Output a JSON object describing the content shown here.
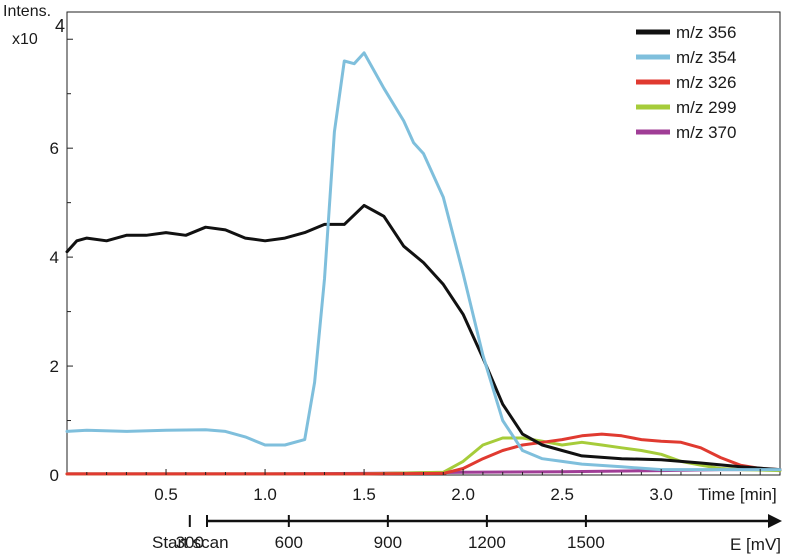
{
  "chart_data": {
    "type": "line",
    "ylabel": "Intens.",
    "yscale": "x10",
    "yscale_exp": "4",
    "xlabel": "Time [min]",
    "xlim": [
      0,
      3.6
    ],
    "ylim": [
      0,
      8.5
    ],
    "x_ticks": [
      {
        "value": 0.5,
        "label": "0.5"
      },
      {
        "value": 1.0,
        "label": "1.0"
      },
      {
        "value": 1.5,
        "label": "1.5"
      },
      {
        "value": 2.0,
        "label": "2.0"
      },
      {
        "value": 2.5,
        "label": "2.5"
      },
      {
        "value": 3.0,
        "label": "3.0"
      }
    ],
    "y_ticks": [
      {
        "value": 0,
        "label": "0"
      },
      {
        "value": 2,
        "label": "2"
      },
      {
        "value": 4,
        "label": "4"
      },
      {
        "value": 6,
        "label": "6"
      }
    ],
    "legend_position": "top-right",
    "grid": false,
    "series": [
      {
        "name": "m/z 356",
        "color": "#111111",
        "x": [
          0.0,
          0.05,
          0.1,
          0.2,
          0.3,
          0.4,
          0.5,
          0.6,
          0.7,
          0.8,
          0.9,
          1.0,
          1.1,
          1.2,
          1.3,
          1.4,
          1.5,
          1.6,
          1.7,
          1.8,
          1.9,
          2.0,
          2.1,
          2.2,
          2.3,
          2.4,
          2.5,
          2.6,
          2.8,
          3.0,
          3.2,
          3.4,
          3.6
        ],
        "values": [
          4.1,
          4.3,
          4.35,
          4.3,
          4.4,
          4.4,
          4.45,
          4.4,
          4.55,
          4.5,
          4.35,
          4.3,
          4.35,
          4.45,
          4.6,
          4.6,
          4.95,
          4.75,
          4.2,
          3.9,
          3.5,
          2.95,
          2.15,
          1.3,
          0.75,
          0.55,
          0.45,
          0.35,
          0.3,
          0.28,
          0.22,
          0.15,
          0.1
        ]
      },
      {
        "name": "m/z 354",
        "color": "#7fbfdc",
        "x": [
          0.0,
          0.1,
          0.3,
          0.5,
          0.7,
          0.8,
          0.9,
          1.0,
          1.1,
          1.2,
          1.25,
          1.3,
          1.35,
          1.4,
          1.45,
          1.5,
          1.6,
          1.7,
          1.75,
          1.8,
          1.9,
          2.0,
          2.1,
          2.2,
          2.3,
          2.4,
          2.5,
          2.6,
          2.8,
          3.0,
          3.2,
          3.4,
          3.6
        ],
        "values": [
          0.8,
          0.82,
          0.8,
          0.82,
          0.83,
          0.8,
          0.7,
          0.55,
          0.55,
          0.65,
          1.7,
          3.6,
          6.3,
          7.6,
          7.55,
          7.75,
          7.1,
          6.5,
          6.1,
          5.9,
          5.1,
          3.7,
          2.2,
          1.0,
          0.45,
          0.3,
          0.25,
          0.2,
          0.15,
          0.1,
          0.1,
          0.1,
          0.1
        ]
      },
      {
        "name": "m/z 326",
        "color": "#e03a30",
        "x": [
          0.0,
          0.5,
          1.0,
          1.5,
          1.9,
          2.0,
          2.1,
          2.2,
          2.3,
          2.4,
          2.5,
          2.6,
          2.7,
          2.8,
          2.9,
          3.0,
          3.1,
          3.2,
          3.3,
          3.4,
          3.5,
          3.6
        ],
        "values": [
          0.02,
          0.02,
          0.02,
          0.02,
          0.03,
          0.12,
          0.3,
          0.45,
          0.55,
          0.6,
          0.65,
          0.72,
          0.75,
          0.72,
          0.65,
          0.62,
          0.6,
          0.5,
          0.32,
          0.18,
          0.12,
          0.1
        ]
      },
      {
        "name": "m/z 299",
        "color": "#a6cc3a",
        "x": [
          0.0,
          0.5,
          1.0,
          1.5,
          1.9,
          2.0,
          2.1,
          2.2,
          2.3,
          2.4,
          2.5,
          2.6,
          2.7,
          2.8,
          2.9,
          3.0,
          3.1,
          3.2,
          3.3,
          3.4,
          3.6
        ],
        "values": [
          0.02,
          0.02,
          0.02,
          0.02,
          0.05,
          0.25,
          0.55,
          0.68,
          0.68,
          0.62,
          0.55,
          0.6,
          0.55,
          0.5,
          0.45,
          0.38,
          0.25,
          0.18,
          0.12,
          0.1,
          0.08
        ]
      },
      {
        "name": "m/z 370",
        "color": "#a03d96",
        "x": [
          0.0,
          0.5,
          1.0,
          1.5,
          2.0,
          2.5,
          3.0,
          3.3,
          3.6
        ],
        "values": [
          0.02,
          0.02,
          0.02,
          0.03,
          0.05,
          0.06,
          0.08,
          0.1,
          0.1
        ]
      }
    ],
    "potential_axis": {
      "label": "E [mV]",
      "start_label": "Start scan",
      "ticks": [
        {
          "time": 0.62,
          "label": "300"
        },
        {
          "time": 1.12,
          "label": "600"
        },
        {
          "time": 1.62,
          "label": "900"
        },
        {
          "time": 2.12,
          "label": "1200"
        },
        {
          "time": 2.62,
          "label": "1500"
        }
      ]
    }
  }
}
